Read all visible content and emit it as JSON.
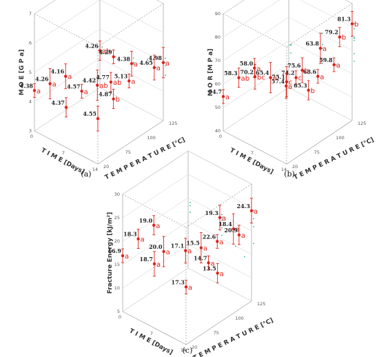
{
  "chart_data": [
    {
      "panel_label": "(a)",
      "type": "scatter",
      "zlabel": "M O E [G P a]",
      "xlabel": "T I M E [Days]",
      "ylabel": "T E M P E R A T U R E [°C]",
      "z_ticks": [
        "3",
        "4",
        "5",
        "6",
        "7"
      ],
      "zlim": [
        3,
        7
      ],
      "time_ticks": [
        "0",
        "7",
        "14"
      ],
      "temp_ticks": [
        "20",
        "75",
        "100",
        "125"
      ],
      "points": [
        {
          "time": 0,
          "temperature": 125,
          "value": 4.38,
          "label": "4.38",
          "letter": "a"
        },
        {
          "time": 7,
          "temperature": 125,
          "value": 4.37,
          "label": "4.37",
          "letter": ""
        },
        {
          "time": 14,
          "temperature": 125,
          "value": 4.55,
          "label": "4.55",
          "letter": ""
        },
        {
          "time": 0,
          "temperature": 100,
          "value": 4.26,
          "label": "4.26",
          "letter": "a"
        },
        {
          "time": 7,
          "temperature": 100,
          "value": 4.57,
          "label": "4.57",
          "letter": "a"
        },
        {
          "time": 14,
          "temperature": 100,
          "value": 4.87,
          "label": "4.87",
          "letter": "b"
        },
        {
          "time": 0,
          "temperature": 75,
          "value": 4.16,
          "label": "4.16",
          "letter": "a"
        },
        {
          "time": 7,
          "temperature": 75,
          "value": 4.42,
          "label": "4.42",
          "letter": "ab"
        },
        {
          "time": 14,
          "temperature": 75,
          "value": 5.13,
          "label": "5.13",
          "letter": "a"
        },
        {
          "time": 0,
          "temperature": 20,
          "value": 4.26,
          "label": "4.26",
          "letter": "ab"
        },
        {
          "time": 7,
          "temperature": 20,
          "value": 4.38,
          "label": "4.38",
          "letter": "a"
        },
        {
          "time": 14,
          "temperature": 20,
          "value": 4.98,
          "label": "4.98",
          "letter": "a"
        },
        {
          "time": 3,
          "temperature": 20,
          "value": 4.29,
          "label": "4.29",
          "letter": ""
        },
        {
          "time": 10,
          "temperature": 75,
          "value": 4.77,
          "label": "4.77",
          "letter": "ab"
        },
        {
          "time": 12,
          "temperature": 20,
          "value": 4.65,
          "label": "4.65",
          "letter": "a"
        }
      ]
    },
    {
      "panel_label": "(b)",
      "type": "scatter",
      "zlabel": "M O R [M P a]",
      "xlabel": "T I M E [Days]",
      "ylabel": "T E M P E R A T U R E [°C]",
      "z_ticks": [
        "40",
        "50",
        "60",
        "70",
        "80",
        "90"
      ],
      "zlim": [
        40,
        90
      ],
      "time_ticks": [
        "0",
        "7",
        "14"
      ],
      "temp_ticks": [
        "20",
        "75",
        "100",
        "125"
      ],
      "points": [
        {
          "time": 0,
          "temperature": 125,
          "value": 54.7,
          "label": "54.7",
          "letter": "a"
        },
        {
          "time": 0,
          "temperature": 100,
          "value": 58.3,
          "label": "58.3",
          "letter": "ab"
        },
        {
          "time": 7,
          "temperature": 125,
          "value": 70.2,
          "label": "70.2",
          "letter": "bc"
        },
        {
          "time": 14,
          "temperature": 125,
          "value": 75.1,
          "label": "75.1",
          "letter": "c"
        },
        {
          "time": 14,
          "temperature": 110,
          "value": 74.2,
          "label": "74.2",
          "letter": "c"
        },
        {
          "time": 0,
          "temperature": 75,
          "value": 58.0,
          "label": "58.0",
          "letter": "a"
        },
        {
          "time": 7,
          "temperature": 75,
          "value": 57.4,
          "label": "57.4",
          "letter": "a"
        },
        {
          "time": 7,
          "temperature": 100,
          "value": 65.4,
          "label": "65.4",
          "letter": "a"
        },
        {
          "time": 14,
          "temperature": 75,
          "value": 68.6,
          "label": "68.6",
          "letter": "a"
        },
        {
          "time": 14,
          "temperature": 90,
          "value": 65.3,
          "label": "65.3",
          "letter": "b"
        },
        {
          "time": 14,
          "temperature": 100,
          "value": 75.6,
          "label": "75.6",
          "letter": "b"
        },
        {
          "time": 7,
          "temperature": 20,
          "value": 63.8,
          "label": "63.8",
          "letter": "a"
        },
        {
          "time": 10,
          "temperature": 20,
          "value": 59.8,
          "label": "59.8",
          "letter": "a"
        },
        {
          "time": 14,
          "temperature": 40,
          "value": 79.2,
          "label": "79.2",
          "letter": "b"
        },
        {
          "time": 14,
          "temperature": 20,
          "value": 81.3,
          "label": "81.3",
          "letter": "b"
        }
      ]
    },
    {
      "panel_label": "(c)",
      "type": "scatter",
      "zlabel": "Fracture Energy [kJ/m²]",
      "xlabel": "T I M E [Days]",
      "ylabel": "T E M P E R A T U R E [°C]",
      "z_ticks": [
        "5",
        "10",
        "15",
        "20",
        "25",
        "30"
      ],
      "zlim": [
        5,
        30
      ],
      "time_ticks": [
        "0",
        "7",
        "14"
      ],
      "temp_ticks": [
        "20",
        "75",
        "100",
        "125"
      ],
      "points": [
        {
          "time": 0,
          "temperature": 125,
          "value": 16.9,
          "label": "16.9",
          "letter": "a"
        },
        {
          "time": 0,
          "temperature": 100,
          "value": 18.3,
          "label": "18.3",
          "letter": "a"
        },
        {
          "time": 7,
          "temperature": 125,
          "value": 18.7,
          "label": "18.7",
          "letter": "a"
        },
        {
          "time": 7,
          "temperature": 110,
          "value": 20.0,
          "label": "20.0",
          "letter": "a"
        },
        {
          "time": 14,
          "temperature": 125,
          "value": 17.3,
          "label": "17.3",
          "letter": "a"
        },
        {
          "time": 0,
          "temperature": 75,
          "value": 19.0,
          "label": "19.0",
          "letter": "a"
        },
        {
          "time": 7,
          "temperature": 75,
          "value": 17.1,
          "label": "17.1",
          "letter": "a"
        },
        {
          "time": 7,
          "temperature": 50,
          "value": 15.5,
          "label": "15.5",
          "letter": "a"
        },
        {
          "time": 10,
          "temperature": 60,
          "value": 14.7,
          "label": "14.7",
          "letter": "a"
        },
        {
          "time": 12,
          "temperature": 60,
          "value": 13.5,
          "label": "13.5",
          "letter": "a"
        },
        {
          "time": 7,
          "temperature": 20,
          "value": 19.3,
          "label": "19.3",
          "letter": "a"
        },
        {
          "time": 10,
          "temperature": 20,
          "value": 18.4,
          "label": "18.4",
          "letter": "a"
        },
        {
          "time": 14,
          "temperature": 75,
          "value": 22.6,
          "label": "22.6",
          "letter": "a"
        },
        {
          "time": 14,
          "temperature": 40,
          "value": 20.9,
          "label": "20.9",
          "letter": "a"
        },
        {
          "time": 14,
          "temperature": 20,
          "value": 24.3,
          "label": "24.3",
          "letter": "a"
        }
      ]
    }
  ],
  "colors": {
    "marker": "#e0201a",
    "box": "#9a9a9a",
    "grid": "#d8d8d8",
    "projection": "#29b39a"
  }
}
